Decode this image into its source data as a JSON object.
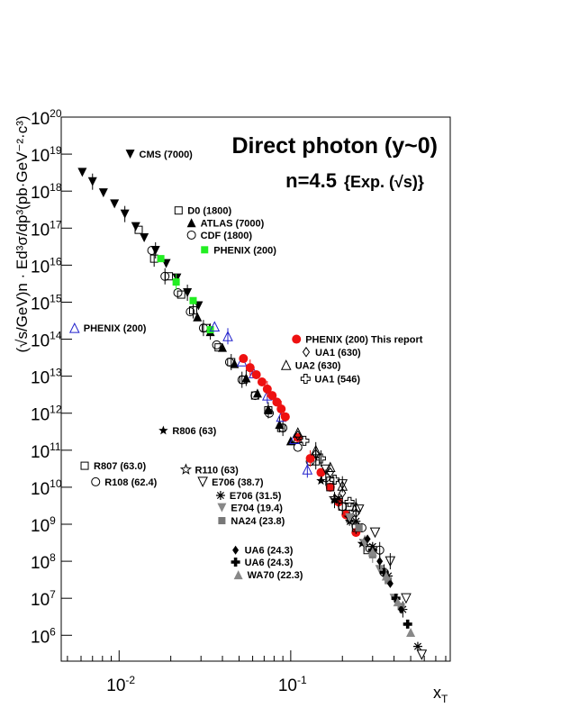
{
  "chart_data": {
    "type": "scatter",
    "title": "Direct photon (y~0)",
    "subtitle_n": "n=4.5",
    "subtitle_exp": "{Exp. (√s)}",
    "xlabel_main": "x",
    "xlabel_sub": "T",
    "ylabel": "(√s/GeV)n · Ed³σ/dp³(pb·GeV⁻²·c³)",
    "x_scale": "log",
    "y_scale": "log",
    "xlim": [
      0.0046,
      0.85
    ],
    "ylim": [
      200000,
      1e+20
    ],
    "x_tick_labels": [
      {
        "value": 0.01,
        "base": "10",
        "exp": "-2"
      },
      {
        "value": 0.1,
        "base": "10",
        "exp": "-1"
      }
    ],
    "y_tick_labels": [
      {
        "value": 1000000.0,
        "base": "10",
        "exp": "6"
      },
      {
        "value": 10000000.0,
        "base": "10",
        "exp": "7"
      },
      {
        "value": 100000000.0,
        "base": "10",
        "exp": "8"
      },
      {
        "value": 1000000000.0,
        "base": "10",
        "exp": "9"
      },
      {
        "value": 10000000000.0,
        "base": "10",
        "exp": "10"
      },
      {
        "value": 100000000000.0,
        "base": "10",
        "exp": "11"
      },
      {
        "value": 1000000000000.0,
        "base": "10",
        "exp": "12"
      },
      {
        "value": 10000000000000.0,
        "base": "10",
        "exp": "13"
      },
      {
        "value": 100000000000000.0,
        "base": "10",
        "exp": "14"
      },
      {
        "value": 1000000000000000.0,
        "base": "10",
        "exp": "15"
      },
      {
        "value": 1e+16,
        "base": "10",
        "exp": "16"
      },
      {
        "value": 1e+17,
        "base": "10",
        "exp": "17"
      },
      {
        "value": 1e+18,
        "base": "10",
        "exp": "18"
      },
      {
        "value": 1e+19,
        "base": "10",
        "exp": "19"
      },
      {
        "value": 1e+20,
        "base": "10",
        "exp": "20"
      }
    ],
    "series": [
      {
        "name": "CMS (7000)",
        "marker": "tri-down-filled",
        "color": "#000000",
        "legend_pos": [
          0.0116,
          1e+19
        ],
        "x": [
          0.0061,
          0.007,
          0.0081,
          0.0094,
          0.0108,
          0.0125,
          0.014,
          0.0163,
          0.0188,
          0.0217,
          0.025,
          0.029
        ],
        "y": [
          3.2e+18,
          1.8e+18,
          9e+17,
          4.5e+17,
          2.4e+17,
          1.1e+17,
          5.5e+16,
          2.5e+16,
          1.1e+16,
          4500000000000000.0,
          1800000000000000.0,
          800000000000000.0
        ]
      },
      {
        "name": "D0 (1800)",
        "marker": "square-open",
        "color": "#000000",
        "legend_pos": [
          0.0222,
          3e+17
        ],
        "x": [
          0.013,
          0.016,
          0.0195,
          0.023,
          0.027,
          0.032,
          0.038,
          0.045,
          0.053,
          0.062,
          0.074,
          0.088,
          0.11,
          0.14,
          0.17,
          0.22
        ],
        "y": [
          9e+16,
          1.5e+16,
          5000000000000000.0,
          1600000000000000.0,
          600000000000000.0,
          200000000000000.0,
          60000000000000.0,
          24000000000000.0,
          8000000000000.0,
          3000000000000.0,
          1200000000000.0,
          400000000000.0,
          200000000000.0,
          50000000000.0,
          15000000000.0,
          3000000000.0
        ]
      },
      {
        "name": "ATLAS (7000)",
        "marker": "tri-up-filled",
        "color": "#000000",
        "legend_pos": [
          0.0264,
          1.4e+17
        ],
        "x": [
          0.0286,
          0.034,
          0.04,
          0.047,
          0.055,
          0.064,
          0.074,
          0.086,
          0.1
        ],
        "y": [
          400000000000000.0,
          160000000000000.0,
          60000000000000.0,
          22000000000000.0,
          9000000000000.0,
          3500000000000.0,
          1300000000000.0,
          500000000000.0,
          180000000000.0
        ]
      },
      {
        "name": "CDF (1800)",
        "marker": "circle-open",
        "color": "#000000",
        "legend_pos": [
          0.0264,
          6.5e+16
        ],
        "x": [
          0.0155,
          0.0185,
          0.022,
          0.026,
          0.031,
          0.037,
          0.044,
          0.052,
          0.062,
          0.075,
          0.09,
          0.11,
          0.13,
          0.16,
          0.2,
          0.26,
          0.33
        ],
        "y": [
          2.5e+16,
          5000000000000000.0,
          1800000000000000.0,
          550000000000000.0,
          200000000000000.0,
          70000000000000.0,
          24000000000000.0,
          8000000000000.0,
          3000000000000.0,
          1000000000000.0,
          400000000000.0,
          120000000000.0,
          50000000000.0,
          18000000000.0,
          3000000000.0,
          800000000.0,
          200000000.0
        ]
      },
      {
        "name": "PHENIX (200)",
        "marker": "square-filled",
        "color": "#22ee22",
        "legend_pos": [
          0.0315,
          2.6e+16
        ],
        "x": [
          0.0175,
          0.0215,
          0.027,
          0.034
        ],
        "y": [
          1.5e+16,
          3500000000000000.0,
          1100000000000000.0,
          180000000000000.0
        ]
      },
      {
        "name": "PHENIX (200)",
        "marker": "tri-up-open",
        "color": "#2222cc",
        "legend_pos": [
          0.0055,
          200000000000000.0
        ],
        "x": [
          0.036,
          0.043,
          0.052,
          0.061,
          0.073,
          0.088,
          0.105,
          0.125
        ],
        "y": [
          220000000000000.0,
          120000000000000.0,
          25000000000000.0,
          12000000000000.0,
          3000000000000.0,
          800000000000.0,
          200000000000.0,
          30000000000.0
        ]
      },
      {
        "name": "PHENIX (200) This report",
        "marker": "circle-filled",
        "color": "#ee1111",
        "legend_pos": [
          0.108,
          100000000000000.0
        ],
        "x": [
          0.053,
          0.058,
          0.063,
          0.068,
          0.073,
          0.078,
          0.083,
          0.088,
          0.093,
          0.11,
          0.13,
          0.15,
          0.17,
          0.19,
          0.21,
          0.24
        ],
        "y": [
          30000000000000.0,
          17000000000000.0,
          11000000000000.0,
          7000000000000.0,
          4500000000000.0,
          3000000000000.0,
          2000000000000.0,
          1300000000000.0,
          800000000000.0,
          220000000000.0,
          60000000000.0,
          25000000000.0,
          10000000000.0,
          4000000000.0,
          1800000000.0,
          600000000.0
        ]
      },
      {
        "name": "UA1 (630)",
        "marker": "diamond-open",
        "color": "#000000",
        "legend_pos": [
          0.123,
          45000000000000.0
        ],
        "x": [
          0.11,
          0.14,
          0.17,
          0.2,
          0.24
        ],
        "y": [
          250000000000.0,
          80000000000.0,
          25000000000.0,
          7000000000.0,
          2000000000.0
        ]
      },
      {
        "name": "UA2 (630)",
        "marker": "tri-up-open",
        "color": "#000000",
        "legend_pos": [
          0.094,
          20000000000000.0
        ],
        "x": [
          0.11,
          0.14,
          0.17,
          0.2,
          0.24
        ],
        "y": [
          300000000000.0,
          100000000000.0,
          35000000000.0,
          11000000000.0,
          3000000000.0
        ]
      },
      {
        "name": "UA1 (546)",
        "marker": "cross-open",
        "color": "#000000",
        "legend_pos": [
          0.122,
          8500000000000.0
        ],
        "x": [
          0.12,
          0.15,
          0.18,
          0.22
        ],
        "y": [
          180000000000.0,
          60000000000.0,
          16000000000.0,
          4000000000.0
        ]
      },
      {
        "name": "R806 (63)",
        "marker": "star-filled",
        "color": "#000000",
        "legend_pos": [
          0.0181,
          340000000000.0
        ],
        "x": [
          0.15,
          0.18,
          0.22,
          0.26
        ],
        "y": [
          15000000000.0,
          4500000000.0,
          1200000000.0,
          300000000.0
        ]
      },
      {
        "name": "R807 (63.0)",
        "marker": "square-open",
        "color": "#000000",
        "legend_pos": [
          0.0063,
          38000000000.0
        ],
        "x": [
          0.17,
          0.2,
          0.24,
          0.28
        ],
        "y": [
          10000000000.0,
          3000000000.0,
          800000000.0,
          200000000.0
        ]
      },
      {
        "name": "R108 (62.4)",
        "marker": "circle-open",
        "color": "#000000",
        "legend_pos": [
          0.0073,
          14000000000.0
        ],
        "x": [
          0.2,
          0.24,
          0.29,
          0.35
        ],
        "y": [
          3000000000.0,
          900000000.0,
          220000000.0,
          50000000.0
        ]
      },
      {
        "name": "R110 (63)",
        "marker": "star-open",
        "color": "#000000",
        "legend_pos": [
          0.0245,
          30000000000.0
        ],
        "x": [
          0.18,
          0.22,
          0.27
        ],
        "y": [
          5000000000.0,
          1500000000.0,
          350000000.0
        ]
      },
      {
        "name": "E706 (38.7)",
        "marker": "tri-down-open",
        "color": "#000000",
        "legend_pos": [
          0.0307,
          14000000000.0
        ],
        "x": [
          0.16,
          0.2,
          0.25,
          0.31,
          0.38,
          0.47,
          0.58
        ],
        "y": [
          30000000000.0,
          12000000000.0,
          2500000000.0,
          600000000.0,
          100000000.0,
          10000000.0,
          300000.0
        ]
      },
      {
        "name": "E706 (31.5)",
        "marker": "asterisk",
        "color": "#000000",
        "legend_pos": [
          0.039,
          6000000000.0
        ],
        "x": [
          0.19,
          0.24,
          0.3,
          0.37,
          0.45,
          0.55
        ],
        "y": [
          5000000000.0,
          1200000000.0,
          250000000.0,
          40000000.0,
          5000000.0,
          500000.0
        ]
      },
      {
        "name": "E704 (19.4)",
        "marker": "tri-down-filled",
        "color": "#888888",
        "legend_pos": [
          0.0397,
          2800000000.0
        ],
        "x": [
          0.22,
          0.27,
          0.33,
          0.4
        ],
        "y": [
          1500000000.0,
          300000000.0,
          60000000.0,
          10000000.0
        ]
      },
      {
        "name": "NA24 (23.8)",
        "marker": "square-filled",
        "color": "#777777",
        "legend_pos": [
          0.0397,
          1250000000.0
        ],
        "x": [
          0.25,
          0.3,
          0.37,
          0.44
        ],
        "y": [
          800000000.0,
          150000000.0,
          30000000.0,
          6000000.0
        ]
      },
      {
        "name": "UA6 (24.3)",
        "marker": "diamond-filled",
        "color": "#000000",
        "legend_pos": [
          0.0477,
          200000000.0
        ],
        "x": [
          0.28,
          0.33,
          0.38,
          0.44
        ],
        "y": [
          400000000.0,
          100000000.0,
          25000000.0,
          5000000.0
        ]
      },
      {
        "name": "UA6 (24.3)",
        "marker": "cross-filled",
        "color": "#000000",
        "legend_pos": [
          0.0477,
          95000000.0
        ],
        "x": [
          0.3,
          0.35,
          0.41,
          0.48
        ],
        "y": [
          200000000.0,
          50000000.0,
          10000000.0,
          2000000.0
        ]
      },
      {
        "name": "WA70 (22.3)",
        "marker": "tri-up-filled",
        "color": "#888888",
        "legend_pos": [
          0.0495,
          43000000.0
        ],
        "x": [
          0.3,
          0.36,
          0.42,
          0.5
        ],
        "y": [
          180000000.0,
          40000000.0,
          8000000.0,
          1200000.0
        ]
      }
    ]
  }
}
